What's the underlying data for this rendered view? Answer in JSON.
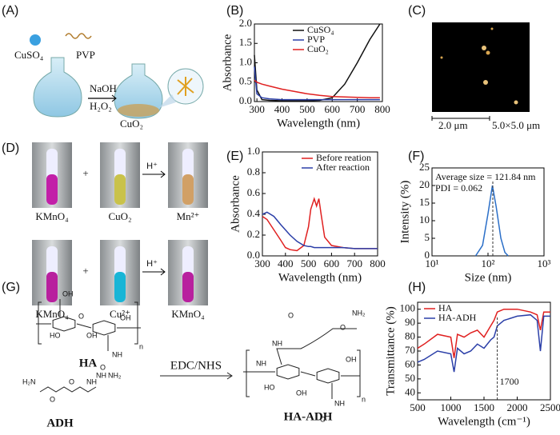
{
  "labels": [
    "(A)",
    "(B)",
    "(C)",
    "(D)",
    "(E)",
    "(F)",
    "(G)",
    "(H)"
  ],
  "panel_a": {
    "reagents": [
      "CuSO₄",
      "PVP"
    ],
    "conditions": [
      "NaOH",
      "H₂O₂"
    ],
    "product": "CuO₂"
  },
  "panel_c": {
    "scale_bar": "2.0 μm",
    "scan_size": "5.0×5.0 μm"
  },
  "panel_d": {
    "rows": [
      {
        "left": "KMnO₄",
        "plus": "+",
        "middle": "CuO₂",
        "arrow": "H⁺",
        "right": "Mn²⁺"
      },
      {
        "left": "KMnO₄",
        "plus": "+",
        "middle": "Cu²⁺",
        "arrow": "H⁺",
        "right": "KMnO₄"
      }
    ]
  },
  "panel_g": {
    "reactant1": "HA",
    "reactant2": "ADH",
    "reagent": "EDC/NHS",
    "product": "HA-ADH",
    "repeat": [
      "n",
      "n"
    ],
    "atoms_ha": [
      "OH",
      "O",
      "HO",
      "OH",
      "OH",
      "NH",
      "O"
    ],
    "atoms_adh": [
      "H₂N",
      "NH",
      "O",
      "O",
      "NH",
      "NH₂"
    ],
    "atoms_product": [
      "NH",
      "NH₂",
      "NH",
      "O",
      "O",
      "HO",
      "OH",
      "OH",
      "NH",
      "O"
    ]
  },
  "chart_data": [
    {
      "type": "line",
      "xlabel": "Wavelength (nm)",
      "ylabel": "Absorbance",
      "x": [
        290,
        300,
        320,
        350,
        400,
        450,
        500,
        550,
        600,
        650,
        700,
        750,
        790
      ],
      "series": [
        {
          "name": "CuSO₄",
          "color": "#111111",
          "values": [
            1.2,
            0.3,
            0.05,
            0.03,
            0.02,
            0.02,
            0.02,
            0.03,
            0.1,
            0.45,
            1.0,
            1.6,
            2.0
          ]
        },
        {
          "name": "PVP",
          "color": "#2b3fa8",
          "values": [
            0.9,
            0.2,
            0.1,
            0.07,
            0.05,
            0.05,
            0.05,
            0.05,
            0.05,
            0.05,
            0.05,
            0.05,
            0.05
          ]
        },
        {
          "name": "CuO₂",
          "color": "#e02020",
          "values": [
            0.55,
            0.5,
            0.45,
            0.4,
            0.32,
            0.26,
            0.2,
            0.16,
            0.13,
            0.12,
            0.11,
            0.1,
            0.1
          ]
        }
      ],
      "xlim": [
        290,
        800
      ],
      "xticks": [
        300,
        400,
        500,
        600,
        700,
        800
      ],
      "ylim": [
        0,
        2.0
      ],
      "yticks": [
        {
          "value": 0,
          "label": "0.0"
        },
        0.5,
        {
          "value": 1,
          "label": "1.0"
        },
        1.5,
        {
          "value": 2,
          "label": "2.0"
        }
      ],
      "legend": "upper center"
    },
    {
      "type": "line",
      "xlabel": "Wavelength (nm)",
      "ylabel": "Absorbance",
      "x": [
        300,
        320,
        350,
        380,
        400,
        420,
        450,
        480,
        500,
        510,
        525,
        535,
        545,
        555,
        570,
        600,
        650,
        700,
        750,
        800
      ],
      "series": [
        {
          "name": "Before reation",
          "color": "#e02020",
          "values": [
            0.38,
            0.35,
            0.25,
            0.15,
            0.08,
            0.06,
            0.05,
            0.1,
            0.28,
            0.45,
            0.55,
            0.48,
            0.55,
            0.4,
            0.18,
            0.1,
            0.08,
            0.07,
            0.07,
            0.07
          ]
        },
        {
          "name": "After reaction",
          "color": "#2b3fa8",
          "values": [
            0.4,
            0.42,
            0.38,
            0.3,
            0.25,
            0.2,
            0.14,
            0.1,
            0.09,
            0.09,
            0.08,
            0.08,
            0.08,
            0.08,
            0.08,
            0.08,
            0.08,
            0.07,
            0.07,
            0.07
          ]
        }
      ],
      "xlim": [
        300,
        800
      ],
      "xticks": [
        300,
        400,
        500,
        600,
        700,
        800
      ],
      "ylim": [
        0,
        1.0
      ],
      "yticks": [
        {
          "value": 0,
          "label": "0.0"
        },
        0.2,
        0.4,
        0.6,
        0.8,
        {
          "value": 1,
          "label": "1.0"
        }
      ],
      "legend": "upper right"
    },
    {
      "type": "line",
      "xlabel": "Size (nm)",
      "ylabel": "Intensity (%)",
      "xlog": true,
      "x": [
        60,
        80,
        100,
        120,
        140,
        170,
        200,
        230
      ],
      "series": [
        {
          "name": null,
          "color": "#2b6fc8",
          "values": [
            0,
            3,
            12,
            20,
            14,
            5,
            1,
            0
          ]
        }
      ],
      "xlim": [
        10,
        1000
      ],
      "xticks": [
        {
          "value": 10,
          "label": "10¹"
        },
        {
          "value": 100,
          "label": "10²"
        },
        {
          "value": 1000,
          "label": "10³"
        }
      ],
      "ylim": [
        0,
        25
      ],
      "yticks": [
        0,
        5,
        10,
        15,
        20,
        25
      ],
      "annotations": [
        "Average size = 121.84 nm",
        "PDI = 0.062"
      ],
      "vline": 121.84
    },
    {
      "type": "line",
      "xlabel": "Wavelength (cm⁻¹)",
      "ylabel": "Transmittance (%)",
      "x": [
        500,
        600,
        800,
        1000,
        1050,
        1100,
        1200,
        1300,
        1400,
        1500,
        1600,
        1650,
        1700,
        1800,
        2000,
        2200,
        2300,
        2350,
        2400,
        2500
      ],
      "series": [
        {
          "name": "HA",
          "color": "#e02020",
          "values": [
            72,
            75,
            82,
            80,
            65,
            82,
            80,
            83,
            85,
            80,
            88,
            92,
            98,
            100,
            100,
            98,
            96,
            85,
            98,
            98
          ]
        },
        {
          "name": "HA-ADH",
          "color": "#2b3fa8",
          "values": [
            62,
            64,
            70,
            68,
            55,
            72,
            68,
            70,
            75,
            72,
            78,
            80,
            88,
            92,
            95,
            96,
            92,
            70,
            95,
            95
          ]
        }
      ],
      "xlim": [
        500,
        2500
      ],
      "xticks": [
        500,
        1000,
        1500,
        2000,
        2500
      ],
      "ylim": [
        35,
        105
      ],
      "yticks": [
        40,
        50,
        60,
        70,
        80,
        90,
        100
      ],
      "legend": "upper left",
      "vline": 1700
    }
  ]
}
